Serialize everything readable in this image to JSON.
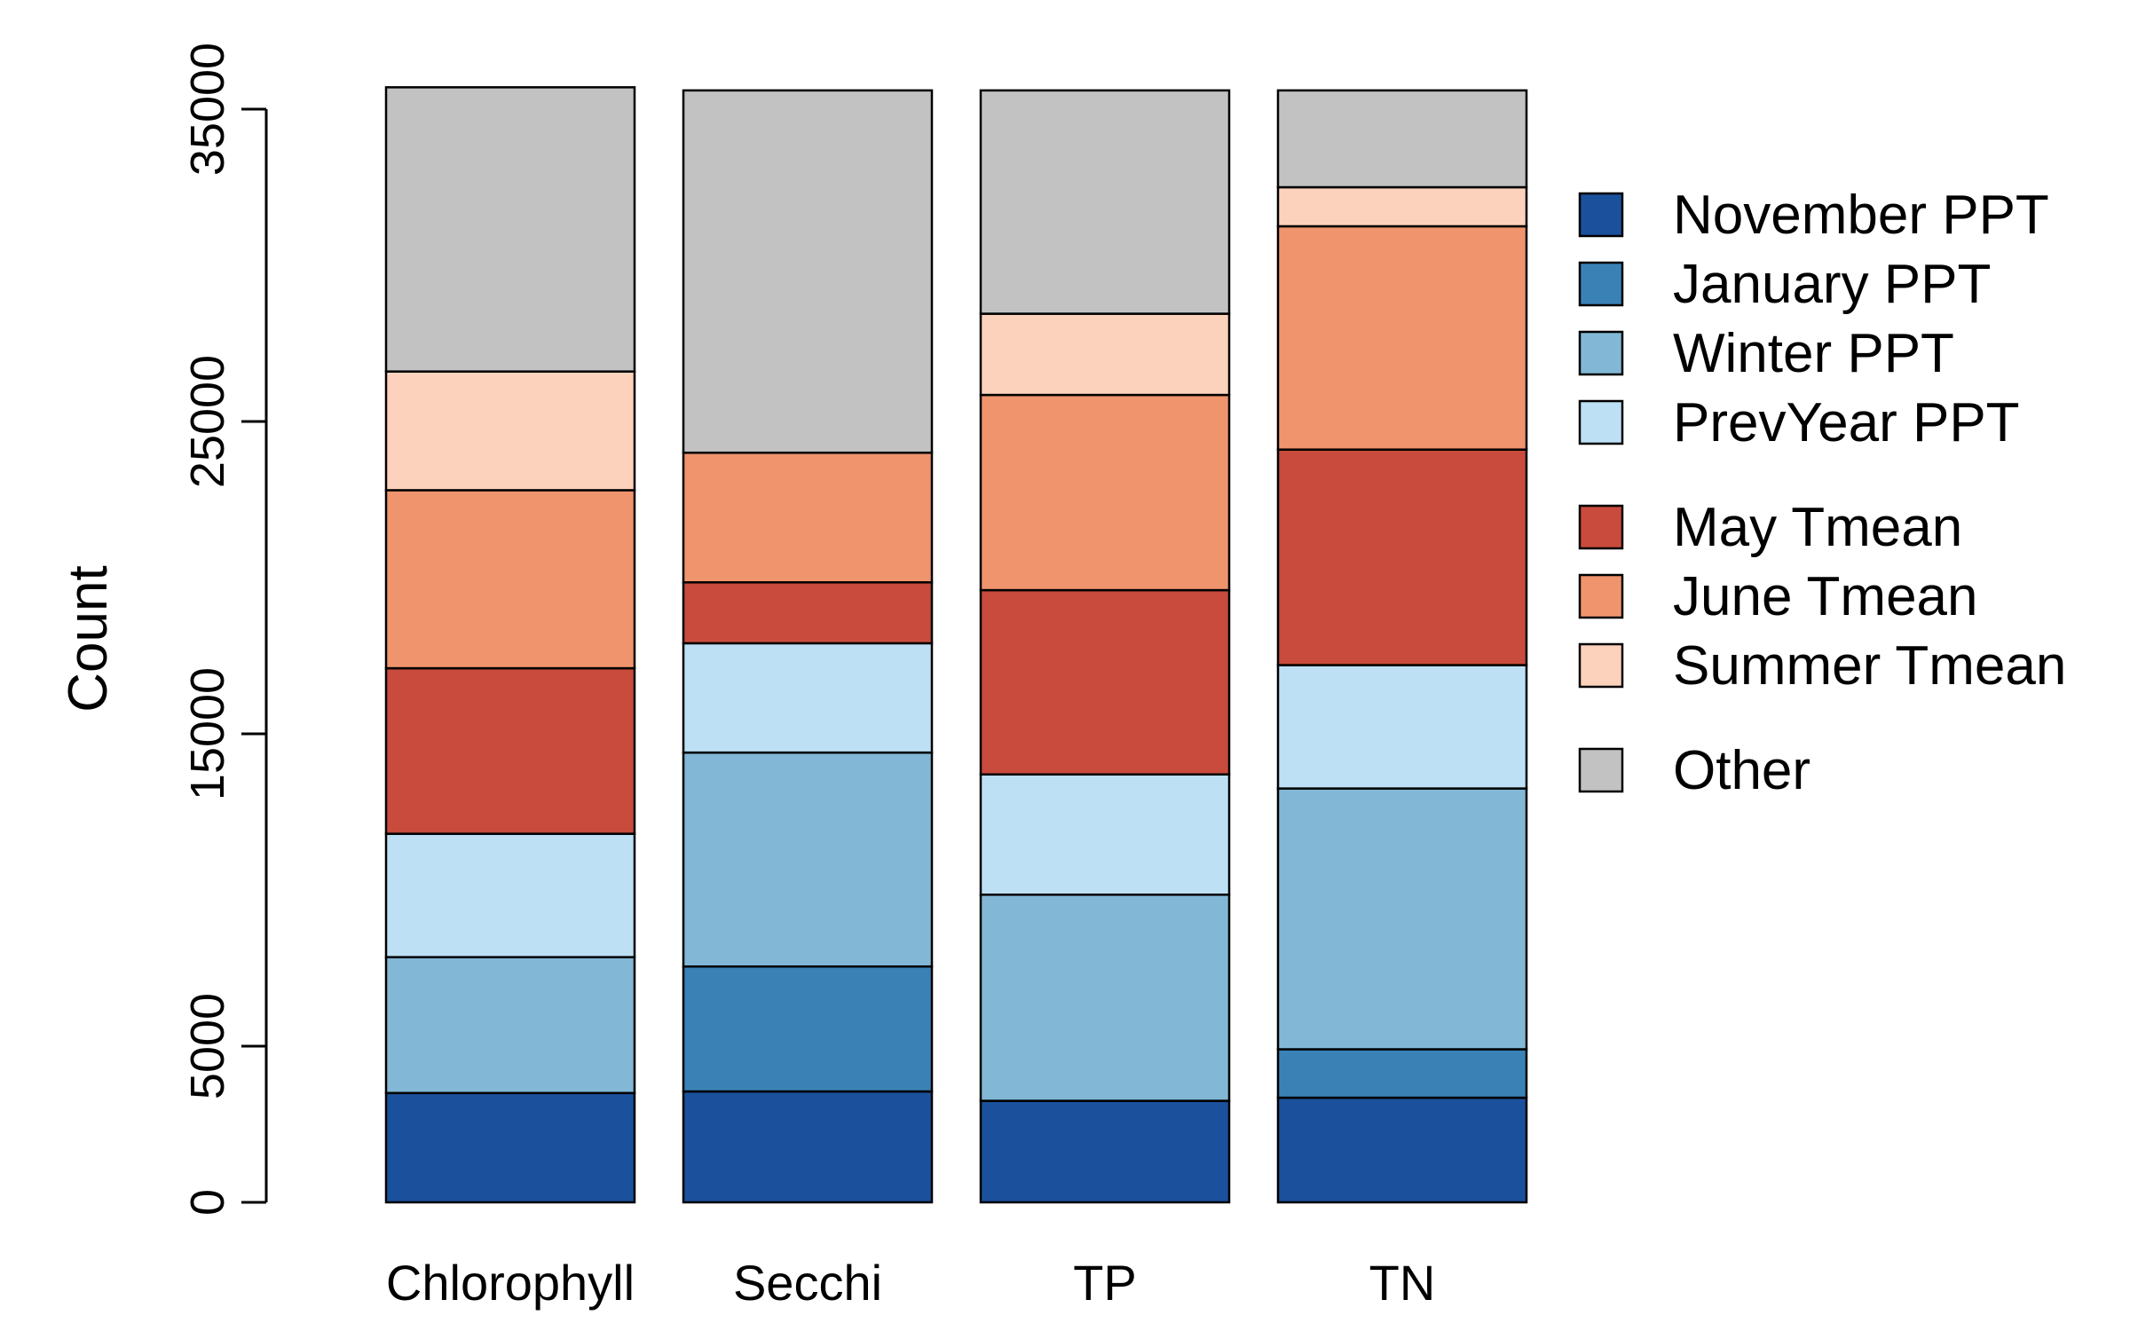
{
  "chart_data": {
    "type": "bar",
    "stacked": true,
    "title": "",
    "xlabel": "",
    "ylabel": "Count",
    "ylim": [
      0,
      35600
    ],
    "yticks": [
      0,
      5000,
      15000,
      25000,
      35000
    ],
    "categories": [
      "Chlorophyll",
      "Secchi",
      "TP",
      "TN"
    ],
    "series": [
      {
        "name": "November PPT",
        "color": "#1b519c",
        "values": [
          3500,
          3550,
          3250,
          3350
        ]
      },
      {
        "name": "January PPT",
        "color": "#3a81b6",
        "values": [
          0,
          4000,
          0,
          1550
        ]
      },
      {
        "name": "Winter PPT",
        "color": "#82b7d6",
        "values": [
          4350,
          6850,
          6600,
          8350
        ]
      },
      {
        "name": "PrevYear PPT",
        "color": "#bde0f5",
        "values": [
          3950,
          3500,
          3850,
          3950
        ]
      },
      {
        "name": "May Tmean",
        "color": "#c84b3d",
        "values": [
          5300,
          1950,
          5900,
          6900
        ]
      },
      {
        "name": "June Tmean",
        "color": "#f0946e",
        "values": [
          5700,
          4150,
          6250,
          7150
        ]
      },
      {
        "name": "Summer Tmean",
        "color": "#fcd2bc",
        "values": [
          3800,
          0,
          2600,
          1250
        ]
      },
      {
        "name": "Other",
        "color": "#c2c2c2",
        "values": [
          9100,
          11600,
          7150,
          3100
        ]
      }
    ],
    "legend": {
      "placement": "right",
      "groups": [
        [
          0,
          1,
          2,
          3
        ],
        [
          4,
          5,
          6
        ],
        [
          7
        ]
      ]
    },
    "grid": false
  }
}
